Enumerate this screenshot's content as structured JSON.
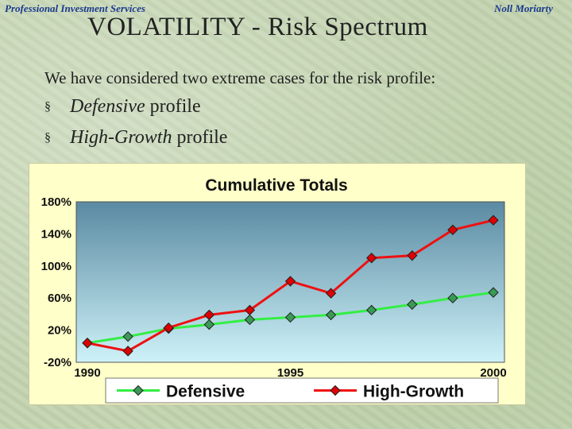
{
  "header": {
    "left": "Professional Investment Services",
    "right": "Noll Moriarty"
  },
  "title": "VOLATILITY - Risk Spectrum",
  "intro": "We have considered two extreme cases for the risk profile:",
  "bullets": [
    {
      "marker": "§",
      "emph": "Defensive",
      "rest": "profile"
    },
    {
      "marker": "§",
      "emph": "High-Growth",
      "rest": "profile"
    }
  ],
  "chart_data": {
    "type": "line",
    "title": "Cumulative Totals",
    "x": [
      1990,
      1991,
      1992,
      1993,
      1994,
      1995,
      1996,
      1997,
      1998,
      1999,
      2000
    ],
    "x_tick_labels": [
      "1990",
      "1995",
      "2000"
    ],
    "x_tick_values": [
      1990,
      1995,
      2000
    ],
    "ylim": [
      -20,
      180
    ],
    "y_ticks": [
      180,
      140,
      100,
      60,
      20,
      -20
    ],
    "y_tick_labels": [
      "180%",
      "140%",
      "100%",
      "60%",
      "20%",
      "-20%"
    ],
    "grid": false,
    "legend_position": "bottom",
    "series": [
      {
        "name": "Defensive",
        "line_color": "#33ee44",
        "marker_color": "#3a9a55",
        "values": [
          4,
          12,
          22,
          27,
          33,
          36,
          39,
          45,
          52,
          60,
          67
        ]
      },
      {
        "name": "High-Growth",
        "line_color": "#ee1111",
        "marker_color": "#dd0000",
        "values": [
          4,
          -6,
          23,
          39,
          45,
          81,
          66,
          110,
          113,
          145,
          157
        ]
      }
    ],
    "plot_colors": {
      "top": "#5a8aa2",
      "bottom": "#cef2f8"
    }
  }
}
